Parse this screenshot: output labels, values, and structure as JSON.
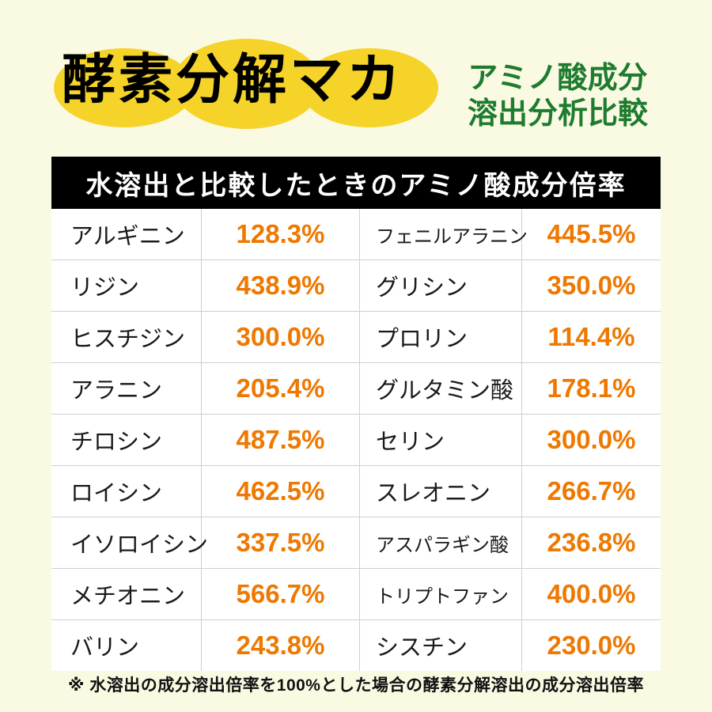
{
  "colors": {
    "page_bg": "#FAFAE3",
    "blob_yellow": "#F5D328",
    "title_black": "#000000",
    "subtitle_green": "#1E7B2F",
    "banner_bg": "#000000",
    "banner_text": "#FFFFFF",
    "value_orange": "#EE7800",
    "divider_gray": "#CFCFCF"
  },
  "header": {
    "title": "酵素分解マカ",
    "subtitle_line1": "アミノ酸成分",
    "subtitle_line2": "溶出分析比較"
  },
  "banner": {
    "text": "水溶出と比較したときのアミノ酸成分倍率"
  },
  "table": {
    "rows": [
      {
        "left_name": "アルギニン",
        "left_value": "128.3%",
        "right_name": "フェニルアラニン",
        "right_value": "445.5%"
      },
      {
        "left_name": "リジン",
        "left_value": "438.9%",
        "right_name": "グリシン",
        "right_value": "350.0%"
      },
      {
        "left_name": "ヒスチジン",
        "left_value": "300.0%",
        "right_name": "プロリン",
        "right_value": "114.4%"
      },
      {
        "left_name": "アラニン",
        "left_value": "205.4%",
        "right_name": "グルタミン酸",
        "right_value": "178.1%"
      },
      {
        "left_name": "チロシン",
        "left_value": "487.5%",
        "right_name": "セリン",
        "right_value": "300.0%"
      },
      {
        "left_name": "ロイシン",
        "left_value": "462.5%",
        "right_name": "スレオニン",
        "right_value": "266.7%"
      },
      {
        "left_name": "イソロイシン",
        "left_value": "337.5%",
        "right_name": "アスパラギン酸",
        "right_value": "236.8%"
      },
      {
        "left_name": "メチオニン",
        "left_value": "566.7%",
        "right_name": "トリプトファン",
        "right_value": "400.0%"
      },
      {
        "left_name": "バリン",
        "left_value": "243.8%",
        "right_name": "シスチン",
        "right_value": "230.0%"
      }
    ]
  },
  "footnote": {
    "text": "※ 水溶出の成分溶出倍率を100%とした場合の酵素分解溶出の成分溶出倍率"
  },
  "chart_data": {
    "type": "table",
    "title": "水溶出と比較したときのアミノ酸成分倍率",
    "subtitle": "酵素分解マカ アミノ酸成分溶出分析比較",
    "unit": "%",
    "note": "※ 水溶出の成分溶出倍率を100%とした場合の酵素分解溶出の成分溶出倍率",
    "items": [
      {
        "name": "アルギニン",
        "value": 128.3
      },
      {
        "name": "リジン",
        "value": 438.9
      },
      {
        "name": "ヒスチジン",
        "value": 300.0
      },
      {
        "name": "アラニン",
        "value": 205.4
      },
      {
        "name": "チロシン",
        "value": 487.5
      },
      {
        "name": "ロイシン",
        "value": 462.5
      },
      {
        "name": "イソロイシン",
        "value": 337.5
      },
      {
        "name": "メチオニン",
        "value": 566.7
      },
      {
        "name": "バリン",
        "value": 243.8
      },
      {
        "name": "フェニルアラニン",
        "value": 445.5
      },
      {
        "name": "グリシン",
        "value": 350.0
      },
      {
        "name": "プロリン",
        "value": 114.4
      },
      {
        "name": "グルタミン酸",
        "value": 178.1
      },
      {
        "name": "セリン",
        "value": 300.0
      },
      {
        "name": "スレオニン",
        "value": 266.7
      },
      {
        "name": "アスパラギン酸",
        "value": 236.8
      },
      {
        "name": "トリプトファン",
        "value": 400.0
      },
      {
        "name": "シスチン",
        "value": 230.0
      }
    ]
  }
}
